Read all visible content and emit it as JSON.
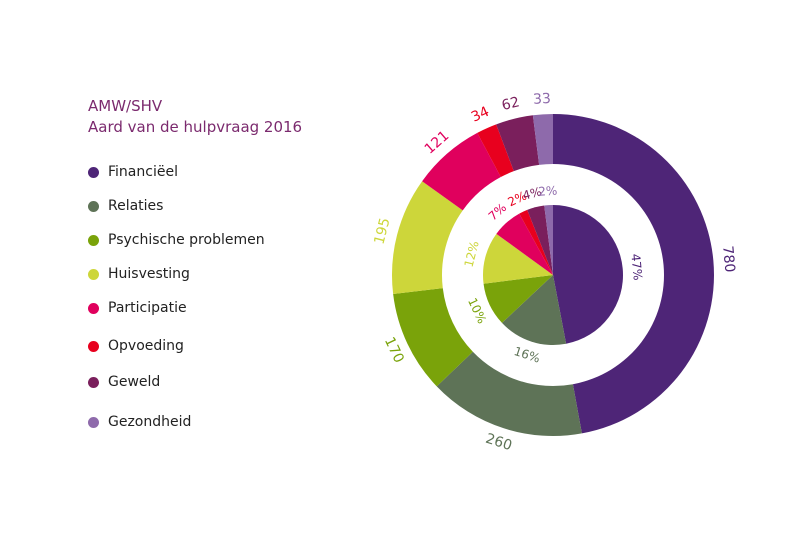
{
  "title": {
    "line1": "AMW/SHV",
    "line2": "Aard van de hulpvraag 2016"
  },
  "chart_data": {
    "type": "pie",
    "variant": "nested-donut",
    "categories": [
      "Financiëel",
      "Relaties",
      "Psychische problemen",
      "Huisvesting",
      "Participatie",
      "Opvoeding",
      "Geweld",
      "Gezondheid"
    ],
    "colors": [
      "#4e2577",
      "#5e7357",
      "#7aa30a",
      "#cdd63a",
      "#e0005d",
      "#e8001e",
      "#7a1f5c",
      "#8e6aab"
    ],
    "outer_ring": {
      "values": [
        780,
        260,
        170,
        195,
        121,
        34,
        62,
        33
      ],
      "labels": [
        "780",
        "260",
        "170",
        "195",
        "121",
        "34",
        "62",
        "33"
      ]
    },
    "inner_pie": {
      "values": [
        47,
        16,
        10,
        12,
        7,
        2,
        4,
        2
      ],
      "labels": [
        "47%",
        "16%",
        "10%",
        "12%",
        "7%",
        "2%",
        "4%",
        "2%"
      ]
    },
    "legend_position": "left"
  }
}
